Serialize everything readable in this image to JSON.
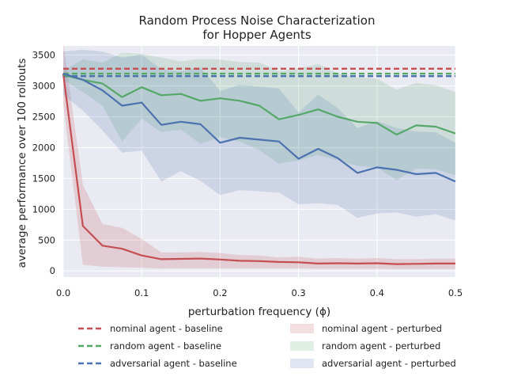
{
  "chart_data": {
    "type": "line",
    "title_lines": [
      "Random Process Noise Characterization",
      "for Hopper Agents"
    ],
    "xlabel": "perturbation frequency (ϕ)",
    "ylabel": "average performance over 100 rollouts",
    "xlim": [
      0,
      0.5
    ],
    "ylim": [
      -100,
      3650
    ],
    "x_ticks": [
      0.0,
      0.1,
      0.2,
      0.3,
      0.4,
      0.5
    ],
    "x_tick_labels": [
      "0.0",
      "0.1",
      "0.2",
      "0.3",
      "0.4",
      "0.5"
    ],
    "y_ticks": [
      0,
      500,
      1000,
      1500,
      2000,
      2500,
      3000,
      3500
    ],
    "y_tick_labels": [
      "0",
      "500",
      "1000",
      "1500",
      "2000",
      "2500",
      "3000",
      "3500"
    ],
    "grid": true,
    "background_color": "#eaeaf2",
    "x": [
      0.0,
      0.025,
      0.05,
      0.075,
      0.1,
      0.125,
      0.15,
      0.175,
      0.2,
      0.225,
      0.25,
      0.275,
      0.3,
      0.325,
      0.35,
      0.375,
      0.4,
      0.425,
      0.45,
      0.475,
      0.5
    ],
    "baselines": [
      {
        "name": "nominal agent - baseline",
        "value": 3280,
        "color": "#c44e52"
      },
      {
        "name": "random agent - baseline",
        "value": 3200,
        "color": "#55a868"
      },
      {
        "name": "adversarial agent - baseline",
        "value": 3160,
        "color": "#4c72b0"
      }
    ],
    "series": [
      {
        "name": "nominal agent - perturbed",
        "color": "#c44e52",
        "values": [
          3200,
          730,
          410,
          360,
          250,
          190,
          195,
          200,
          185,
          165,
          160,
          145,
          140,
          120,
          125,
          120,
          125,
          110,
          115,
          120,
          120
        ],
        "upper": [
          3700,
          1400,
          760,
          700,
          520,
          300,
          300,
          310,
          290,
          260,
          250,
          220,
          230,
          200,
          210,
          200,
          210,
          190,
          190,
          200,
          200
        ],
        "lower": [
          2700,
          100,
          70,
          60,
          50,
          40,
          40,
          40,
          40,
          40,
          40,
          40,
          40,
          35,
          35,
          35,
          35,
          30,
          30,
          30,
          30
        ]
      },
      {
        "name": "random agent - perturbed",
        "color": "#55a868",
        "values": [
          3180,
          3100,
          3040,
          2820,
          2980,
          2850,
          2870,
          2760,
          2800,
          2760,
          2680,
          2460,
          2530,
          2620,
          2500,
          2420,
          2400,
          2210,
          2360,
          2340,
          2230
        ],
        "upper": [
          3250,
          3430,
          3380,
          3540,
          3520,
          3460,
          3400,
          3440,
          3430,
          3390,
          3380,
          3240,
          3280,
          3360,
          3200,
          3140,
          3120,
          2940,
          3050,
          3010,
          2900
        ],
        "lower": [
          3100,
          2900,
          2680,
          2100,
          2470,
          2250,
          2290,
          2060,
          2170,
          2100,
          1960,
          1740,
          1790,
          1880,
          1800,
          1700,
          1680,
          1470,
          1660,
          1650,
          1550
        ]
      },
      {
        "name": "adversarial agent - perturbed",
        "color": "#4c72b0",
        "values": [
          3200,
          3100,
          2930,
          2680,
          2730,
          2370,
          2420,
          2380,
          2080,
          2160,
          2130,
          2100,
          1820,
          1980,
          1830,
          1590,
          1680,
          1640,
          1570,
          1590,
          1450
        ],
        "upper": [
          3560,
          3590,
          3560,
          3460,
          3510,
          3270,
          3240,
          3300,
          2920,
          3020,
          2990,
          2960,
          2570,
          2860,
          2640,
          2320,
          2430,
          2320,
          2260,
          2250,
          2080
        ],
        "lower": [
          2860,
          2600,
          2280,
          1920,
          1950,
          1450,
          1620,
          1460,
          1230,
          1310,
          1290,
          1270,
          1080,
          1100,
          1070,
          860,
          930,
          950,
          880,
          920,
          820
        ]
      }
    ],
    "legend": {
      "placement": "below-plot",
      "columns": [
        [
          "nominal agent - baseline",
          "random agent - baseline",
          "adversarial agent - baseline"
        ],
        [
          "nominal agent - perturbed",
          "random agent - perturbed",
          "adversarial agent - perturbed"
        ]
      ]
    }
  }
}
